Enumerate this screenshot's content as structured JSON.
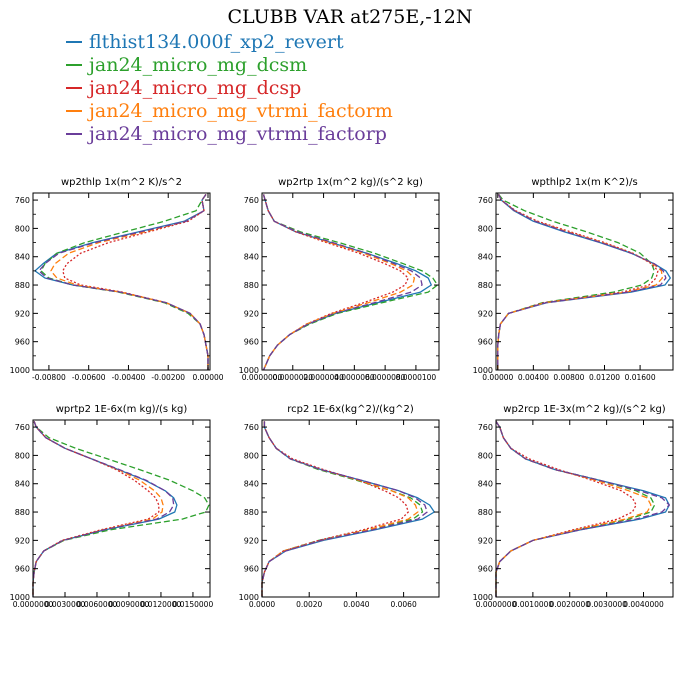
{
  "title": "CLUBB VAR at275E,-12N",
  "legend": [
    {
      "name": "flthist134.000f_xp2_revert",
      "color": "#1f77b4"
    },
    {
      "name": "jan24_micro_mg_dcsm",
      "color": "#2ca02c"
    },
    {
      "name": "jan24_micro_mg_dcsp",
      "color": "#d62728"
    },
    {
      "name": "jan24_micro_mg_vtrmi_factorm",
      "color": "#ff7f0e"
    },
    {
      "name": "jan24_micro_mg_vtrmi_factorp",
      "color": "#6a3d9a"
    }
  ],
  "chart_data": [
    {
      "type": "line",
      "title": "wp2thlp   1x(m^2 K)/s^2",
      "xlim": [
        -0.0088,
        0.0001
      ],
      "ylim": [
        1000,
        750
      ],
      "xticks": [
        -0.008,
        -0.006,
        -0.004,
        -0.002,
        0.0
      ],
      "xtick_labels": [
        "-0.00800",
        "-0.00600",
        "-0.00400",
        "-0.00200",
        "0.00000"
      ],
      "yticks": [
        760,
        800,
        840,
        880,
        920,
        960,
        1000
      ],
      "y": [
        752,
        760,
        775,
        790,
        805,
        820,
        835,
        850,
        860,
        870,
        880,
        890,
        905,
        920,
        935,
        950,
        965,
        980,
        995,
        1000
      ],
      "series": [
        {
          "color": "#1f77b4",
          "values": [
            -0.0001,
            -0.0003,
            -0.0002,
            -0.0012,
            -0.0035,
            -0.0058,
            -0.0076,
            -0.0083,
            -0.0087,
            -0.0082,
            -0.0068,
            -0.0044,
            -0.0021,
            -0.0009,
            -0.0004,
            -0.0002,
            -0.0001,
            0.0,
            0.0,
            0.0
          ]
        },
        {
          "color": "#2ca02c",
          "values": [
            -0.0001,
            -0.0003,
            -0.0006,
            -0.0022,
            -0.0042,
            -0.0062,
            -0.0076,
            -0.0082,
            -0.0084,
            -0.008,
            -0.0068,
            -0.0045,
            -0.0022,
            -0.001,
            -0.0004,
            -0.0002,
            -0.0001,
            0.0,
            0.0,
            0.0
          ]
        },
        {
          "color": "#d62728",
          "values": [
            -0.0001,
            -0.0003,
            -0.0002,
            -0.001,
            -0.003,
            -0.005,
            -0.0064,
            -0.0071,
            -0.0073,
            -0.0072,
            -0.0064,
            -0.0043,
            -0.0021,
            -0.0009,
            -0.0004,
            -0.0002,
            -0.0001,
            0.0,
            0.0,
            0.0
          ]
        },
        {
          "color": "#ff7f0e",
          "values": [
            -0.0001,
            -0.0003,
            -0.0002,
            -0.0011,
            -0.0032,
            -0.0055,
            -0.007,
            -0.0077,
            -0.0079,
            -0.0076,
            -0.0066,
            -0.0044,
            -0.0021,
            -0.0009,
            -0.0004,
            -0.0002,
            -0.0001,
            0.0,
            0.0,
            0.0
          ]
        },
        {
          "color": "#6a3d9a",
          "values": [
            -0.0001,
            -0.0003,
            -0.0002,
            -0.0011,
            -0.0034,
            -0.0057,
            -0.0075,
            -0.0082,
            -0.0085,
            -0.0081,
            -0.0068,
            -0.0044,
            -0.0021,
            -0.0009,
            -0.0004,
            -0.0002,
            -0.0001,
            0.0,
            0.0,
            0.0
          ]
        }
      ]
    },
    {
      "type": "line",
      "title": "wp2rtp   1x(m^2 kg)/(s^2 kg)",
      "xlim": [
        0.0,
        1.15e-05
      ],
      "ylim": [
        1000,
        750
      ],
      "xticks": [
        0.0,
        2e-06,
        4e-06,
        6e-06,
        8e-06,
        1e-05
      ],
      "xtick_labels": [
        "0.0000000",
        "0.0000020",
        "0.0000040",
        "0.0000060",
        "0.0000080",
        "0.0000100"
      ],
      "yticks": [
        760,
        800,
        840,
        880,
        920,
        960,
        1000
      ],
      "y": [
        752,
        760,
        775,
        790,
        805,
        820,
        835,
        850,
        860,
        870,
        880,
        890,
        905,
        920,
        935,
        950,
        965,
        980,
        995,
        1000
      ],
      "series": [
        {
          "color": "#1f77b4",
          "values": [
            1e-07,
            2e-07,
            4e-07,
            8e-07,
            2.2e-06,
            4.5e-06,
            6.8e-06,
            8.8e-06,
            1e-05,
            1.08e-05,
            1.1e-05,
            1.03e-05,
            7.5e-06,
            4.8e-06,
            3e-06,
            1.8e-06,
            1e-06,
            5e-07,
            2e-07,
            1e-07
          ]
        },
        {
          "color": "#2ca02c",
          "values": [
            1e-07,
            2e-07,
            4e-07,
            8e-07,
            2.5e-06,
            5e-06,
            7.3e-06,
            9.2e-06,
            1.04e-05,
            1.11e-05,
            1.14e-05,
            1.08e-05,
            7.8e-06,
            4.9e-06,
            3.1e-06,
            1.8e-06,
            1e-06,
            5e-07,
            2e-07,
            1e-07
          ]
        },
        {
          "color": "#d62728",
          "values": [
            1e-07,
            2e-07,
            4e-07,
            8e-07,
            2.2e-06,
            4.2e-06,
            6.3e-06,
            8e-06,
            9e-06,
            9.5e-06,
            9.3e-06,
            8.5e-06,
            6.6e-06,
            4.5e-06,
            2.9e-06,
            1.8e-06,
            1e-06,
            5e-07,
            2e-07,
            1e-07
          ]
        },
        {
          "color": "#ff7f0e",
          "values": [
            1e-07,
            2e-07,
            4e-07,
            8e-07,
            2.3e-06,
            4.4e-06,
            6.6e-06,
            8.4e-06,
            9.4e-06,
            9.9e-06,
            9.8e-06,
            9e-06,
            6.9e-06,
            4.6e-06,
            2.9e-06,
            1.8e-06,
            1e-06,
            5e-07,
            2e-07,
            1e-07
          ]
        },
        {
          "color": "#6a3d9a",
          "values": [
            1e-07,
            2e-07,
            4e-07,
            8e-07,
            2.3e-06,
            4.6e-06,
            6.8e-06,
            8.6e-06,
            9.7e-06,
            1.03e-05,
            1.04e-05,
            9.7e-06,
            7.3e-06,
            4.7e-06,
            3e-06,
            1.8e-06,
            1e-06,
            5e-07,
            2e-07,
            1e-07
          ]
        }
      ]
    },
    {
      "type": "line",
      "title": "wpthlp2   1x(m K^2)/s",
      "xlim": [
        -0.0002,
        0.0197
      ],
      "ylim": [
        1000,
        750
      ],
      "xticks": [
        0.0,
        0.004,
        0.008,
        0.012,
        0.016
      ],
      "xtick_labels": [
        "0.00000",
        "0.00400",
        "0.00800",
        "0.01200",
        "0.01600"
      ],
      "yticks": [
        760,
        800,
        840,
        880,
        920,
        960,
        1000
      ],
      "y": [
        752,
        760,
        775,
        790,
        805,
        820,
        835,
        850,
        860,
        870,
        880,
        890,
        905,
        920,
        935,
        950,
        965,
        980,
        995,
        1000
      ],
      "series": [
        {
          "color": "#1f77b4",
          "values": [
            0.0001,
            0.0004,
            0.0018,
            0.004,
            0.0075,
            0.0115,
            0.015,
            0.0176,
            0.0189,
            0.0194,
            0.0188,
            0.015,
            0.0055,
            0.0012,
            0.0003,
            0.0001,
            0.0,
            0.0,
            0.0,
            0.0
          ]
        },
        {
          "color": "#2ca02c",
          "values": [
            0.0001,
            0.0006,
            0.003,
            0.0062,
            0.01,
            0.0135,
            0.016,
            0.0173,
            0.0176,
            0.0173,
            0.0162,
            0.013,
            0.005,
            0.0012,
            0.0003,
            0.0001,
            0.0,
            0.0,
            0.0,
            0.0
          ]
        },
        {
          "color": "#d62728",
          "values": [
            0.0001,
            0.0004,
            0.002,
            0.0045,
            0.0082,
            0.012,
            0.0152,
            0.0173,
            0.018,
            0.0178,
            0.017,
            0.014,
            0.0052,
            0.0012,
            0.0003,
            0.0001,
            0.0,
            0.0,
            0.0,
            0.0
          ]
        },
        {
          "color": "#ff7f0e",
          "values": [
            0.0001,
            0.0004,
            0.0019,
            0.0043,
            0.0079,
            0.0118,
            0.0151,
            0.0175,
            0.0184,
            0.0185,
            0.0178,
            0.0145,
            0.0053,
            0.0012,
            0.0003,
            0.0001,
            0.0,
            0.0,
            0.0,
            0.0
          ]
        },
        {
          "color": "#6a3d9a",
          "values": [
            0.0001,
            0.0004,
            0.0019,
            0.0042,
            0.0077,
            0.0116,
            0.015,
            0.0176,
            0.0186,
            0.0189,
            0.0183,
            0.0147,
            0.0054,
            0.0012,
            0.0003,
            0.0001,
            0.0,
            0.0,
            0.0,
            0.0
          ]
        }
      ]
    },
    {
      "type": "line",
      "title": "wprtp2   1E-6x(m kg)/(s kg)",
      "xlim": [
        0.0,
        0.0166
      ],
      "ylim": [
        1000,
        750
      ],
      "xticks": [
        0.0,
        0.003,
        0.006,
        0.009,
        0.012,
        0.015
      ],
      "xtick_labels": [
        "0.0000000",
        "0.0030000",
        "0.0060000",
        "0.0090000",
        "0.0120000",
        "0.0150000"
      ],
      "yticks": [
        760,
        800,
        840,
        880,
        920,
        960,
        1000
      ],
      "y": [
        752,
        760,
        775,
        790,
        805,
        820,
        835,
        850,
        860,
        870,
        880,
        890,
        905,
        920,
        935,
        950,
        965,
        980,
        995,
        1000
      ],
      "series": [
        {
          "color": "#1f77b4",
          "values": [
            0.0001,
            0.0003,
            0.0012,
            0.003,
            0.0055,
            0.008,
            0.0105,
            0.0124,
            0.0132,
            0.0135,
            0.0133,
            0.0118,
            0.0068,
            0.0028,
            0.001,
            0.0003,
            0.0001,
            0.0,
            0.0,
            0.0
          ]
        },
        {
          "color": "#2ca02c",
          "values": [
            0.0001,
            0.0003,
            0.0015,
            0.004,
            0.007,
            0.01,
            0.0128,
            0.015,
            0.0161,
            0.0165,
            0.0162,
            0.014,
            0.0073,
            0.0029,
            0.001,
            0.0003,
            0.0001,
            0.0,
            0.0,
            0.0
          ]
        },
        {
          "color": "#d62728",
          "values": [
            0.0001,
            0.0003,
            0.0012,
            0.003,
            0.0055,
            0.0078,
            0.0095,
            0.0108,
            0.0115,
            0.0118,
            0.0118,
            0.0108,
            0.0064,
            0.0027,
            0.001,
            0.0003,
            0.0001,
            0.0,
            0.0,
            0.0
          ]
        },
        {
          "color": "#ff7f0e",
          "values": [
            0.0001,
            0.0003,
            0.0012,
            0.003,
            0.0055,
            0.008,
            0.01,
            0.0114,
            0.012,
            0.0122,
            0.0121,
            0.0112,
            0.0066,
            0.0028,
            0.001,
            0.0003,
            0.0001,
            0.0,
            0.0,
            0.0
          ]
        },
        {
          "color": "#6a3d9a",
          "values": [
            0.0001,
            0.0003,
            0.0012,
            0.003,
            0.0055,
            0.0081,
            0.0106,
            0.0124,
            0.0131,
            0.0132,
            0.0128,
            0.0116,
            0.0067,
            0.0028,
            0.001,
            0.0003,
            0.0001,
            0.0,
            0.0,
            0.0
          ]
        }
      ]
    },
    {
      "type": "line",
      "title": "rcp2   1E-6x(kg^2)/(kg^2)",
      "xlim": [
        0.0,
        0.0075
      ],
      "ylim": [
        1000,
        750
      ],
      "xticks": [
        0.0,
        0.002,
        0.004,
        0.006
      ],
      "xtick_labels": [
        "0.0000",
        "0.0020",
        "0.0040",
        "0.0060"
      ],
      "yticks": [
        760,
        800,
        840,
        880,
        920,
        960,
        1000
      ],
      "y": [
        752,
        760,
        775,
        790,
        805,
        820,
        835,
        850,
        860,
        870,
        880,
        890,
        905,
        920,
        935,
        950,
        965,
        980,
        995,
        1000
      ],
      "series": [
        {
          "color": "#1f77b4",
          "values": [
            0.0001,
            0.0001,
            0.0003,
            0.0006,
            0.0012,
            0.0025,
            0.0042,
            0.0058,
            0.0066,
            0.0071,
            0.0073,
            0.0068,
            0.0048,
            0.0026,
            0.001,
            0.0003,
            0.0001,
            0.0,
            0.0,
            0.0
          ]
        },
        {
          "color": "#2ca02c",
          "values": [
            0.0001,
            0.0001,
            0.0003,
            0.0006,
            0.0012,
            0.0024,
            0.004,
            0.0055,
            0.0063,
            0.0067,
            0.0068,
            0.0064,
            0.0045,
            0.0024,
            0.0009,
            0.0003,
            0.0001,
            0.0,
            0.0,
            0.0
          ]
        },
        {
          "color": "#d62728",
          "values": [
            0.0001,
            0.0001,
            0.0003,
            0.0006,
            0.0013,
            0.0026,
            0.0041,
            0.0052,
            0.0058,
            0.0061,
            0.0062,
            0.0059,
            0.0043,
            0.0024,
            0.0009,
            0.0003,
            0.0001,
            0.0,
            0.0,
            0.0
          ]
        },
        {
          "color": "#ff7f0e",
          "values": [
            0.0001,
            0.0001,
            0.0003,
            0.0006,
            0.0012,
            0.0025,
            0.0041,
            0.0055,
            0.0062,
            0.0065,
            0.0066,
            0.0062,
            0.0045,
            0.0025,
            0.0009,
            0.0003,
            0.0001,
            0.0,
            0.0,
            0.0
          ]
        },
        {
          "color": "#6a3d9a",
          "values": [
            0.0001,
            0.0001,
            0.0003,
            0.0006,
            0.0012,
            0.0025,
            0.0042,
            0.0058,
            0.0065,
            0.0069,
            0.007,
            0.0066,
            0.0047,
            0.0025,
            0.001,
            0.0003,
            0.0001,
            0.0,
            0.0,
            0.0
          ]
        }
      ]
    },
    {
      "type": "line",
      "title": "wp2rcp   1E-3x(m^2 kg)/(s^2 kg)",
      "xlim": [
        0.0,
        0.0048
      ],
      "ylim": [
        1000,
        750
      ],
      "xticks": [
        0.0,
        0.001,
        0.002,
        0.003,
        0.004
      ],
      "xtick_labels": [
        "0.0000000",
        "0.0010000",
        "0.0020000",
        "0.0030000",
        "0.0040000"
      ],
      "yticks": [
        760,
        800,
        840,
        880,
        920,
        960,
        1000
      ],
      "y": [
        752,
        760,
        775,
        790,
        805,
        820,
        835,
        850,
        860,
        870,
        880,
        890,
        905,
        920,
        935,
        950,
        965,
        980,
        995,
        1000
      ],
      "series": [
        {
          "color": "#1f77b4",
          "values": [
            0.0,
            0.0001,
            0.0002,
            0.0004,
            0.0008,
            0.0016,
            0.0028,
            0.004,
            0.0046,
            0.0047,
            0.0046,
            0.0039,
            0.0023,
            0.001,
            0.0004,
            0.0001,
            0.0,
            0.0,
            0.0,
            0.0
          ]
        },
        {
          "color": "#2ca02c",
          "values": [
            0.0,
            0.0001,
            0.0002,
            0.0004,
            0.0008,
            0.0016,
            0.0028,
            0.0038,
            0.0042,
            0.0043,
            0.0042,
            0.0036,
            0.0022,
            0.001,
            0.0004,
            0.0001,
            0.0,
            0.0,
            0.0,
            0.0
          ]
        },
        {
          "color": "#d62728",
          "values": [
            0.0,
            0.0001,
            0.0002,
            0.0004,
            0.0009,
            0.0017,
            0.0026,
            0.0034,
            0.0037,
            0.0038,
            0.0037,
            0.0033,
            0.0021,
            0.001,
            0.0004,
            0.0001,
            0.0,
            0.0,
            0.0,
            0.0
          ]
        },
        {
          "color": "#ff7f0e",
          "values": [
            0.0,
            0.0001,
            0.0002,
            0.0004,
            0.0008,
            0.0016,
            0.0027,
            0.0036,
            0.0041,
            0.0042,
            0.0041,
            0.0035,
            0.0022,
            0.001,
            0.0004,
            0.0001,
            0.0,
            0.0,
            0.0,
            0.0
          ]
        },
        {
          "color": "#6a3d9a",
          "values": [
            0.0,
            0.0001,
            0.0002,
            0.0004,
            0.0008,
            0.0016,
            0.0028,
            0.0039,
            0.0045,
            0.0047,
            0.0045,
            0.0038,
            0.0023,
            0.001,
            0.0004,
            0.0001,
            0.0,
            0.0,
            0.0,
            0.0
          ]
        }
      ]
    }
  ]
}
